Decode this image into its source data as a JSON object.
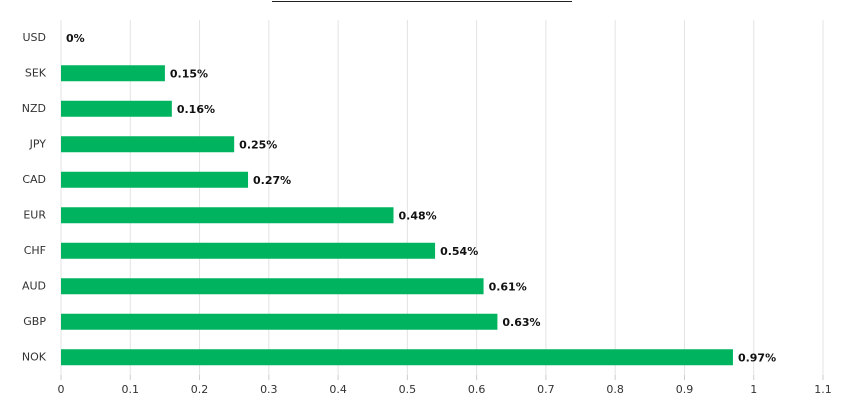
{
  "chart_data": {
    "type": "bar",
    "orientation": "horizontal",
    "categories": [
      "USD",
      "SEK",
      "NZD",
      "JPY",
      "CAD",
      "EUR",
      "CHF",
      "AUD",
      "GBP",
      "NOK"
    ],
    "values": [
      0,
      0.15,
      0.16,
      0.25,
      0.27,
      0.48,
      0.54,
      0.61,
      0.63,
      0.97
    ],
    "value_labels": [
      "0%",
      "0.15%",
      "0.16%",
      "0.25%",
      "0.27%",
      "0.48%",
      "0.54%",
      "0.61%",
      "0.63%",
      "0.97%"
    ],
    "color": "#00b35f",
    "xlim": [
      0,
      1.1
    ],
    "xticks": [
      0,
      0.1,
      0.2,
      0.3,
      0.4,
      0.5,
      0.6,
      0.7,
      0.8,
      0.9,
      1,
      1.1
    ],
    "grid": true
  }
}
